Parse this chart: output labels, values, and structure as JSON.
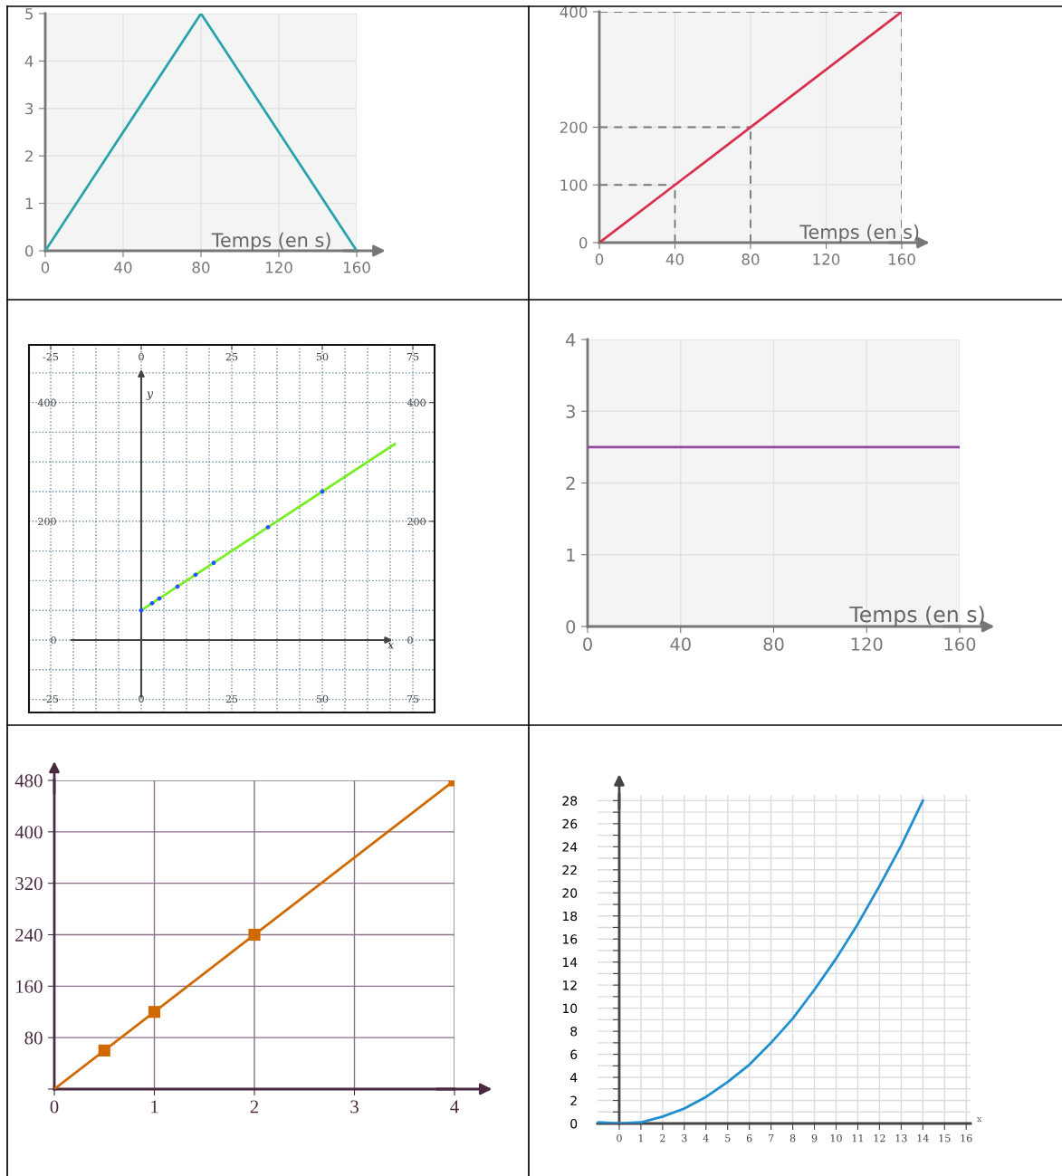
{
  "chart_data": [
    {
      "type": "line",
      "xlabel": "Temps (en s)",
      "x": [
        0,
        80,
        160
      ],
      "values": [
        0,
        5,
        0
      ],
      "color": "#2ba3ab",
      "xlim": [
        0,
        160
      ],
      "ylim": [
        0,
        5
      ],
      "xticks": [
        0,
        40,
        80,
        120,
        160
      ],
      "yticks": [
        0,
        1,
        2,
        3,
        4,
        5
      ],
      "grid": true
    },
    {
      "type": "line",
      "xlabel": "Temps (en s)",
      "x": [
        0,
        160
      ],
      "values": [
        0,
        400
      ],
      "color": "#d9304f",
      "xlim": [
        0,
        160
      ],
      "ylim": [
        0,
        400
      ],
      "xticks": [
        0,
        40,
        80,
        120,
        160
      ],
      "yticks": [
        0,
        100,
        200,
        400
      ],
      "grid": true,
      "ref_lines": [
        {
          "axis": "y",
          "value": 100,
          "color": "#777777",
          "line_style": "dashed"
        },
        {
          "axis": "y",
          "value": 200,
          "color": "#777777",
          "line_style": "dashed"
        },
        {
          "axis": "y",
          "value": 400,
          "color": "#777777",
          "line_style": "dashed"
        },
        {
          "axis": "x",
          "value": 40,
          "color": "#777777",
          "line_style": "dashed"
        },
        {
          "axis": "x",
          "value": 80,
          "color": "#777777",
          "line_style": "dashed"
        },
        {
          "axis": "x",
          "value": 160,
          "color": "#777777",
          "line_style": "dashed"
        }
      ]
    },
    {
      "type": "scatter",
      "xlabel": "x",
      "ylabel": "y",
      "series": [
        {
          "type": "line",
          "color": "#77ee22",
          "x": [
            0,
            70
          ],
          "values": [
            50,
            330
          ]
        },
        {
          "type": "scatter",
          "color": "#2255ff",
          "x": [
            0,
            3,
            5,
            10,
            15,
            20,
            35,
            50
          ],
          "values": [
            50,
            62,
            70,
            90,
            110,
            130,
            190,
            250
          ]
        }
      ],
      "xlim": [
        -31,
        81
      ],
      "ylim": [
        -122,
        497
      ],
      "xticks": [
        -25,
        {
          "value": -18.75,
          "label": null
        },
        {
          "value": -12.5,
          "label": null
        },
        {
          "value": -6.25,
          "label": null
        },
        0,
        {
          "value": 6.25,
          "label": null
        },
        {
          "value": 12.5,
          "label": null
        },
        {
          "value": 18.75,
          "label": null
        },
        25,
        {
          "value": 31.25,
          "label": null
        },
        {
          "value": 37.5,
          "label": null
        },
        {
          "value": 43.75,
          "label": null
        },
        50,
        {
          "value": 56.25,
          "label": null
        },
        {
          "value": 62.5,
          "label": null
        },
        {
          "value": 68.75,
          "label": null
        },
        75
      ],
      "x2lim": [
        -31,
        81
      ],
      "x2ticks": [
        -25,
        0,
        25,
        50,
        75
      ],
      "yticks": [
        {
          "value": -100,
          "label": null
        },
        {
          "value": -50,
          "label": null
        },
        0,
        {
          "value": 50,
          "label": null
        },
        {
          "value": 100,
          "label": null
        },
        {
          "value": 150,
          "label": null
        },
        200,
        {
          "value": 250,
          "label": null
        },
        {
          "value": 300,
          "label": null
        },
        {
          "value": 350,
          "label": null
        },
        400,
        {
          "value": 450,
          "label": null
        }
      ],
      "y2lim": [
        -122,
        497
      ],
      "y2ticks": [
        0,
        200,
        400
      ],
      "grid": true
    },
    {
      "type": "line",
      "xlabel": "Temps (en s)",
      "x": [
        0,
        160
      ],
      "values": [
        2.5,
        2.5
      ],
      "color": "#9147a3",
      "xlim": [
        0,
        160
      ],
      "ylim": [
        0,
        4
      ],
      "xticks": [
        0,
        40,
        80,
        120,
        160
      ],
      "yticks": [
        0,
        1,
        2,
        3,
        4
      ],
      "grid": true
    },
    {
      "type": "line",
      "series": [
        {
          "type": "line",
          "x": [
            0,
            4
          ],
          "values": [
            0,
            480
          ],
          "color": "#d06a00"
        },
        {
          "type": "scatter",
          "x": [
            0.5,
            1,
            2,
            4
          ],
          "values": [
            60,
            120,
            240,
            480
          ],
          "color": "#d06a00",
          "marker": "square"
        }
      ],
      "xlim": [
        0,
        4
      ],
      "ylim": [
        0,
        480
      ],
      "xticks": [
        0,
        1,
        2,
        3,
        4
      ],
      "yticks": [
        {
          "value": 0,
          "label": null
        },
        80,
        160,
        240,
        320,
        400,
        480
      ],
      "grid": true
    },
    {
      "type": "line",
      "xlabel": "x",
      "x": [
        -1,
        0,
        1,
        2,
        3,
        4,
        5,
        6,
        7,
        8,
        9,
        10,
        11,
        12,
        13,
        14
      ],
      "values": [
        0.1,
        0,
        0.1,
        0.6,
        1.3,
        2.3,
        3.6,
        5.1,
        7,
        9.1,
        11.6,
        14.3,
        17.3,
        20.6,
        24.1,
        28
      ],
      "color": "#1f8fd0",
      "xlim": [
        -1,
        16.2
      ],
      "ylim": [
        0,
        28.5
      ],
      "xticks": [
        0,
        1,
        2,
        3,
        4,
        5,
        6,
        7,
        8,
        9,
        10,
        11,
        12,
        13,
        14,
        15,
        16
      ],
      "yticks": [
        0,
        {
          "value": 1,
          "label": null
        },
        2,
        {
          "value": 3,
          "label": null
        },
        4,
        {
          "value": 5,
          "label": null
        },
        6,
        {
          "value": 7,
          "label": null
        },
        8,
        {
          "value": 9,
          "label": null
        },
        10,
        {
          "value": 11,
          "label": null
        },
        12,
        {
          "value": 13,
          "label": null
        },
        14,
        {
          "value": 15,
          "label": null
        },
        16,
        {
          "value": 17,
          "label": null
        },
        18,
        {
          "value": 19,
          "label": null
        },
        20,
        {
          "value": 21,
          "label": null
        },
        22,
        {
          "value": 23,
          "label": null
        },
        24,
        {
          "value": 25,
          "label": null
        },
        26,
        {
          "value": 27,
          "label": null
        },
        28
      ],
      "grid": true
    }
  ]
}
